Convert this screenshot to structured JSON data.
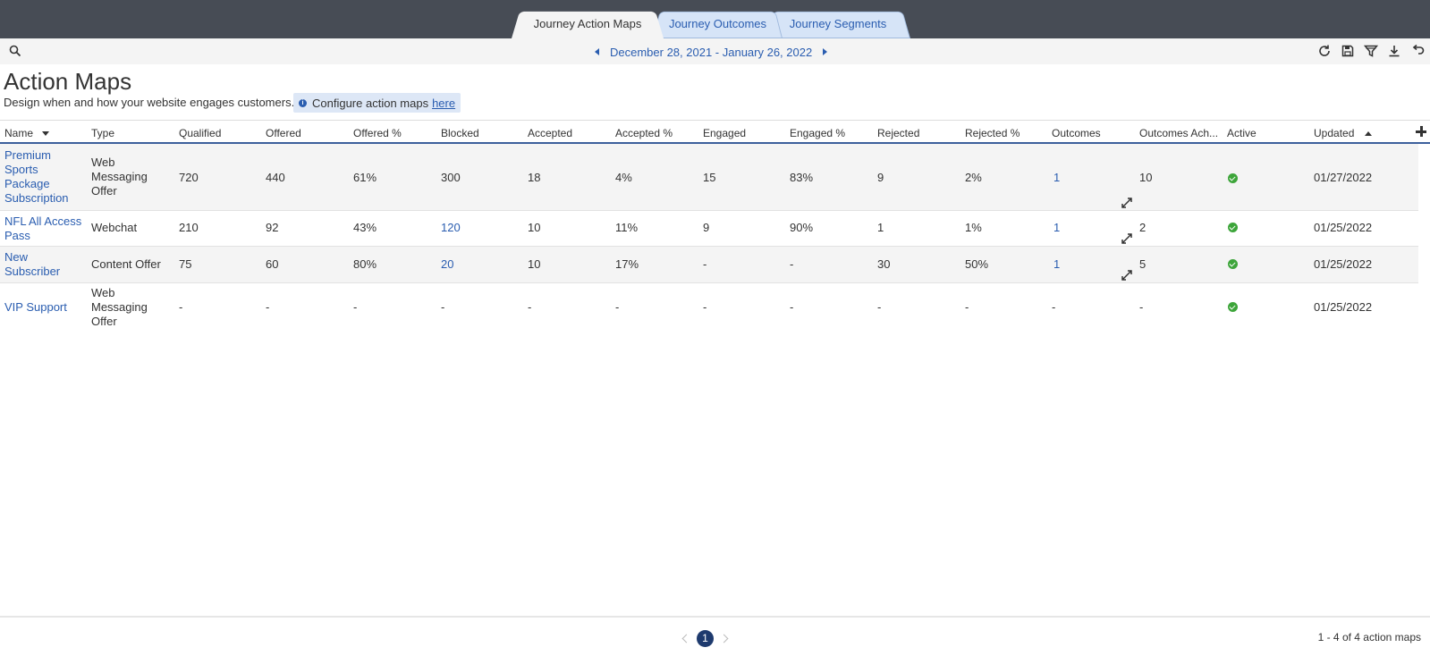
{
  "tabs": [
    {
      "label": "Journey Action Maps",
      "active": true
    },
    {
      "label": "Journey Outcomes",
      "active": false
    },
    {
      "label": "Journey Segments",
      "active": false
    }
  ],
  "toolbar": {
    "date_range": "December 28, 2021 - January 26, 2022",
    "icons": [
      "search-icon",
      "refresh-icon",
      "save-icon",
      "filter-icon",
      "download-icon",
      "undo-icon"
    ]
  },
  "page": {
    "title": "Action Maps",
    "subtitle": "Design when and how your website engages customers.",
    "configure_text": "Configure action maps",
    "configure_link": "here"
  },
  "table": {
    "columns": [
      "Name",
      "Type",
      "Qualified",
      "Offered",
      "Offered %",
      "Blocked",
      "Accepted",
      "Accepted %",
      "Engaged",
      "Engaged %",
      "Rejected",
      "Rejected %",
      "Outcomes",
      "Outcomes Ach...",
      "Active",
      "Updated"
    ],
    "rows": [
      {
        "name": "Premium Sports Package Subscription",
        "type": "Web Messaging Offer",
        "qualified": "720",
        "offered": "440",
        "offered_pct": "61%",
        "blocked": "300",
        "accepted": "18",
        "accepted_pct": "4%",
        "engaged": "15",
        "engaged_pct": "83%",
        "rejected": "9",
        "rejected_pct": "2%",
        "outcomes": "1",
        "outcomes_ach": "10",
        "active": true,
        "updated": "01/27/2022"
      },
      {
        "name": "NFL All Access Pass",
        "type": "Webchat",
        "qualified": "210",
        "offered": "92",
        "offered_pct": "43%",
        "blocked": "120",
        "accepted": "10",
        "accepted_pct": "11%",
        "engaged": "9",
        "engaged_pct": "90%",
        "rejected": "1",
        "rejected_pct": "1%",
        "outcomes": "1",
        "outcomes_ach": "2",
        "active": true,
        "updated": "01/25/2022"
      },
      {
        "name": "New Subscriber",
        "type": "Content Offer",
        "qualified": "75",
        "offered": "60",
        "offered_pct": "80%",
        "blocked": "20",
        "accepted": "10",
        "accepted_pct": "17%",
        "engaged": "-",
        "engaged_pct": "-",
        "rejected": "30",
        "rejected_pct": "50%",
        "outcomes": "1",
        "outcomes_ach": "5",
        "active": true,
        "updated": "01/25/2022"
      },
      {
        "name": "VIP Support",
        "type": "Web Messaging Offer",
        "qualified": "-",
        "offered": "-",
        "offered_pct": "-",
        "blocked": "-",
        "accepted": "-",
        "accepted_pct": "-",
        "engaged": "-",
        "engaged_pct": "-",
        "rejected": "-",
        "rejected_pct": "-",
        "outcomes": "-",
        "outcomes_ach": "-",
        "active": true,
        "updated": "01/25/2022"
      }
    ]
  },
  "footer": {
    "current_page": "1",
    "count_text": "1 - 4 of 4 action maps"
  },
  "colors": {
    "topbar": "#474c55",
    "link": "#2a5db0",
    "active_check": "#3da53a",
    "pager_active": "#1e3a6e"
  }
}
